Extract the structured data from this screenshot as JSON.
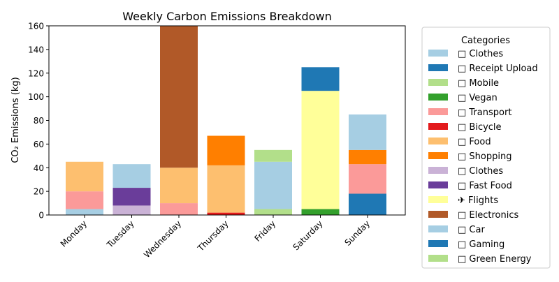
{
  "chart_data": {
    "type": "bar",
    "stacked": true,
    "title": "Weekly Carbon Emissions Breakdown",
    "ylabel": "CO₂ Emissions (kg)",
    "xlabel": "",
    "ylim": [
      0,
      160
    ],
    "yticks": [
      0,
      20,
      40,
      60,
      80,
      100,
      120,
      140,
      160
    ],
    "categories": [
      "Monday",
      "Tuesday",
      "Wednesday",
      "Thursday",
      "Friday",
      "Saturday",
      "Sunday"
    ],
    "legend": {
      "title": "Categories",
      "placement": "outside-right"
    },
    "series": [
      {
        "name": "□ Clothes",
        "color": "#a6cee3",
        "values": [
          5,
          0,
          0,
          0,
          0,
          0,
          0
        ]
      },
      {
        "name": "□ Receipt Upload",
        "color": "#1f78b4",
        "values": [
          0,
          0,
          0,
          0,
          0,
          0,
          0
        ]
      },
      {
        "name": "□ Mobile",
        "color": "#b2df8a",
        "values": [
          0,
          0,
          0,
          0,
          0,
          0,
          0
        ]
      },
      {
        "name": "□ Vegan",
        "color": "#33a02c",
        "values": [
          0,
          0,
          0,
          0,
          0,
          0,
          0
        ]
      },
      {
        "name": "□ Transport",
        "color": "#fb9a99",
        "values": [
          15,
          0,
          10,
          0,
          0,
          0,
          0
        ]
      },
      {
        "name": "□ Bicycle",
        "color": "#e31a1c",
        "values": [
          0,
          0,
          0,
          2,
          0,
          0,
          0
        ]
      },
      {
        "name": "□ Food",
        "color": "#fdbf6f",
        "values": [
          25,
          0,
          30,
          40,
          0,
          0,
          0
        ]
      },
      {
        "name": "□ Shopping",
        "color": "#ff7f00",
        "values": [
          0,
          0,
          0,
          25,
          0,
          0,
          0
        ]
      },
      {
        "name": "□ Clothes",
        "color": "#cab2d6",
        "values": [
          0,
          8,
          0,
          0,
          0,
          0,
          0
        ]
      },
      {
        "name": "□ Fast Food",
        "color": "#6a3d9a",
        "values": [
          0,
          15,
          0,
          0,
          0,
          0,
          0
        ]
      },
      {
        "name": "✈ Flights",
        "color": "#ffff99",
        "values": [
          0,
          0,
          0,
          0,
          0,
          0,
          0
        ]
      },
      {
        "name": "□ Electronics",
        "color": "#b15928",
        "values": [
          0,
          0,
          120,
          0,
          0,
          0,
          0
        ]
      },
      {
        "name": "□ Car",
        "color": "#a6cee3",
        "values": [
          0,
          0,
          0,
          0,
          0,
          0,
          0
        ]
      },
      {
        "name": "□ Gaming",
        "color": "#1f78b4",
        "values": [
          0,
          0,
          0,
          0,
          0,
          0,
          0
        ]
      },
      {
        "name": "□ Green Energy",
        "color": "#b2df8a",
        "values": [
          0,
          0,
          0,
          0,
          0,
          0,
          0
        ]
      }
    ],
    "segments": [
      {
        "category": "Tuesday",
        "color": "#a6cee3",
        "value": 20,
        "bottom": 23
      },
      {
        "category": "Friday",
        "color": "#b2df8a",
        "value": 5,
        "bottom": 0
      },
      {
        "category": "Friday",
        "color": "#a6cee3",
        "value": 40,
        "bottom": 5
      },
      {
        "category": "Friday",
        "color": "#b2df8a",
        "value": 10,
        "bottom": 45
      },
      {
        "category": "Saturday",
        "color": "#33a02c",
        "value": 5,
        "bottom": 0
      },
      {
        "category": "Saturday",
        "color": "#ffff99",
        "value": 100,
        "bottom": 5
      },
      {
        "category": "Saturday",
        "color": "#1f78b4",
        "value": 20,
        "bottom": 105
      },
      {
        "category": "Sunday",
        "color": "#1f78b4",
        "value": 18,
        "bottom": 0
      },
      {
        "category": "Sunday",
        "color": "#fb9a99",
        "value": 25,
        "bottom": 18
      },
      {
        "category": "Sunday",
        "color": "#ff7f00",
        "value": 12,
        "bottom": 43
      },
      {
        "category": "Sunday",
        "color": "#a6cee3",
        "value": 30,
        "bottom": 55
      }
    ]
  }
}
